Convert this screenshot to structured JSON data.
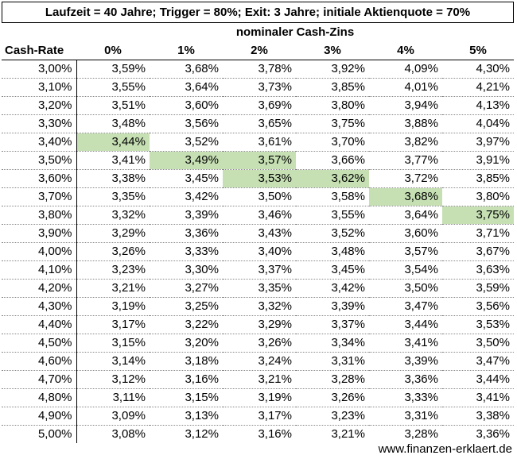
{
  "title": "Laufzeit = 40 Jahre; Trigger = 80%; Exit: 3 Jahre; initiale Aktienquote = 70%",
  "subheader": "nominaler Cash-Zins",
  "row_header": "Cash-Rate",
  "columns": [
    "0%",
    "1%",
    "2%",
    "3%",
    "4%",
    "5%"
  ],
  "highlight_color": "#c6e0b4",
  "rows": [
    {
      "rate": "3,00%",
      "values": [
        "3,59%",
        "3,68%",
        "3,78%",
        "3,92%",
        "4,09%",
        "4,30%"
      ],
      "highlight": []
    },
    {
      "rate": "3,10%",
      "values": [
        "3,55%",
        "3,64%",
        "3,73%",
        "3,85%",
        "4,01%",
        "4,21%"
      ],
      "highlight": []
    },
    {
      "rate": "3,20%",
      "values": [
        "3,51%",
        "3,60%",
        "3,69%",
        "3,80%",
        "3,94%",
        "4,13%"
      ],
      "highlight": []
    },
    {
      "rate": "3,30%",
      "values": [
        "3,48%",
        "3,56%",
        "3,65%",
        "3,75%",
        "3,88%",
        "4,04%"
      ],
      "highlight": []
    },
    {
      "rate": "3,40%",
      "values": [
        "3,44%",
        "3,52%",
        "3,61%",
        "3,70%",
        "3,82%",
        "3,97%"
      ],
      "highlight": [
        0
      ]
    },
    {
      "rate": "3,50%",
      "values": [
        "3,41%",
        "3,49%",
        "3,57%",
        "3,66%",
        "3,77%",
        "3,91%"
      ],
      "highlight": [
        1,
        2
      ]
    },
    {
      "rate": "3,60%",
      "values": [
        "3,38%",
        "3,45%",
        "3,53%",
        "3,62%",
        "3,72%",
        "3,85%"
      ],
      "highlight": [
        2,
        3
      ]
    },
    {
      "rate": "3,70%",
      "values": [
        "3,35%",
        "3,42%",
        "3,50%",
        "3,58%",
        "3,68%",
        "3,80%"
      ],
      "highlight": [
        4
      ]
    },
    {
      "rate": "3,80%",
      "values": [
        "3,32%",
        "3,39%",
        "3,46%",
        "3,55%",
        "3,64%",
        "3,75%"
      ],
      "highlight": [
        5
      ]
    },
    {
      "rate": "3,90%",
      "values": [
        "3,29%",
        "3,36%",
        "3,43%",
        "3,52%",
        "3,60%",
        "3,71%"
      ],
      "highlight": []
    },
    {
      "rate": "4,00%",
      "values": [
        "3,26%",
        "3,33%",
        "3,40%",
        "3,48%",
        "3,57%",
        "3,67%"
      ],
      "highlight": []
    },
    {
      "rate": "4,10%",
      "values": [
        "3,23%",
        "3,30%",
        "3,37%",
        "3,45%",
        "3,54%",
        "3,63%"
      ],
      "highlight": []
    },
    {
      "rate": "4,20%",
      "values": [
        "3,21%",
        "3,27%",
        "3,35%",
        "3,42%",
        "3,50%",
        "3,59%"
      ],
      "highlight": []
    },
    {
      "rate": "4,30%",
      "values": [
        "3,19%",
        "3,25%",
        "3,32%",
        "3,39%",
        "3,47%",
        "3,56%"
      ],
      "highlight": []
    },
    {
      "rate": "4,40%",
      "values": [
        "3,17%",
        "3,22%",
        "3,29%",
        "3,37%",
        "3,44%",
        "3,53%"
      ],
      "highlight": []
    },
    {
      "rate": "4,50%",
      "values": [
        "3,15%",
        "3,20%",
        "3,26%",
        "3,34%",
        "3,41%",
        "3,50%"
      ],
      "highlight": []
    },
    {
      "rate": "4,60%",
      "values": [
        "3,14%",
        "3,18%",
        "3,24%",
        "3,31%",
        "3,39%",
        "3,47%"
      ],
      "highlight": []
    },
    {
      "rate": "4,70%",
      "values": [
        "3,12%",
        "3,16%",
        "3,21%",
        "3,28%",
        "3,36%",
        "3,44%"
      ],
      "highlight": []
    },
    {
      "rate": "4,80%",
      "values": [
        "3,11%",
        "3,15%",
        "3,19%",
        "3,26%",
        "3,33%",
        "3,41%"
      ],
      "highlight": []
    },
    {
      "rate": "4,90%",
      "values": [
        "3,09%",
        "3,13%",
        "3,17%",
        "3,23%",
        "3,31%",
        "3,38%"
      ],
      "highlight": []
    },
    {
      "rate": "5,00%",
      "values": [
        "3,08%",
        "3,12%",
        "3,16%",
        "3,21%",
        "3,28%",
        "3,36%"
      ],
      "highlight": []
    }
  ],
  "footer": "www.finanzen-erklaert.de"
}
